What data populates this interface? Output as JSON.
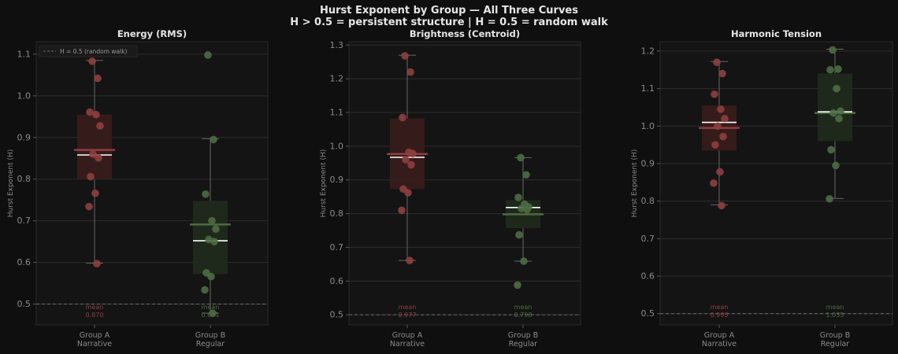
{
  "figure": {
    "title_line1": "Hurst Exponent by Group — All Three Curves",
    "title_line2": "H > 0.5 = persistent structure  |  H = 0.5 = random walk"
  },
  "colors": {
    "background": "#0f0f0f",
    "axes_bg": "#141414",
    "groupA": "#8f3e3e",
    "groupB": "#4d6b42",
    "median": "#ffffff",
    "grid": "#2c2c2c",
    "tick_text": "#8a8a8a",
    "reference_line": "#6a6a6a"
  },
  "chart_data": [
    {
      "type": "box",
      "title": "Energy (RMS)",
      "xlabel": "",
      "ylabel": "Hurst Exponent (H)",
      "ylim": [
        0.45,
        1.13
      ],
      "yticks": [
        "0.5",
        "0.6",
        "0.7",
        "0.8",
        "0.9",
        "1.0",
        "1.1"
      ],
      "reference_line": {
        "y": 0.5,
        "label": "H = 0.5 (random walk)"
      },
      "legend": "top-left",
      "categories": [
        "Group A\nNarrative",
        "Group B\nRegular"
      ],
      "groups": [
        {
          "q1": 0.8,
          "q3": 0.955,
          "median": 0.858,
          "mean": 0.87,
          "whisker_low": 0.598,
          "whisker_high": 1.085,
          "mean_label": "mean",
          "mean_value_label": "0.870",
          "points": [
            1.083,
            1.042,
            0.961,
            0.955,
            0.928,
            0.86,
            0.851,
            0.806,
            0.766,
            0.734,
            0.597
          ]
        },
        {
          "q1": 0.572,
          "q3": 0.748,
          "median": 0.652,
          "mean": 0.691,
          "whisker_low": 0.478,
          "whisker_high": 0.897,
          "mean_label": "mean",
          "mean_value_label": "0.691",
          "points": [
            1.098,
            0.895,
            0.764,
            0.7,
            0.68,
            0.655,
            0.65,
            0.575,
            0.566,
            0.534,
            0.478
          ]
        }
      ]
    },
    {
      "type": "box",
      "title": "Brightness (Centroid)",
      "xlabel": "",
      "ylabel": "Hurst Exponent (H)",
      "ylim": [
        0.47,
        1.31
      ],
      "yticks": [
        "0.5",
        "0.6",
        "0.7",
        "0.8",
        "0.9",
        "1.0",
        "1.1",
        "1.2",
        "1.3"
      ],
      "reference_line": {
        "y": 0.5,
        "label": ""
      },
      "categories": [
        "Group A\nNarrative",
        "Group B\nRegular"
      ],
      "groups": [
        {
          "q1": 0.873,
          "q3": 1.082,
          "median": 0.967,
          "mean": 0.977,
          "whisker_low": 0.661,
          "whisker_high": 1.27,
          "mean_label": "mean",
          "mean_value_label": "0.977",
          "points": [
            1.268,
            1.22,
            1.085,
            0.982,
            0.978,
            0.96,
            0.945,
            0.873,
            0.862,
            0.81,
            0.661
          ]
        },
        {
          "q1": 0.757,
          "q3": 0.84,
          "median": 0.818,
          "mean": 0.798,
          "whisker_low": 0.659,
          "whisker_high": 0.966,
          "mean_label": "mean",
          "mean_value_label": "0.798",
          "points": [
            0.966,
            0.915,
            0.848,
            0.828,
            0.82,
            0.815,
            0.812,
            0.737,
            0.659,
            0.588
          ]
        }
      ]
    },
    {
      "type": "box",
      "title": "Harmonic Tension",
      "xlabel": "",
      "ylabel": "Hurst Exponent (H)",
      "ylim": [
        0.47,
        1.225
      ],
      "yticks": [
        "0.5",
        "0.6",
        "0.7",
        "0.8",
        "0.9",
        "1.0",
        "1.1",
        "1.2"
      ],
      "reference_line": {
        "y": 0.5,
        "label": ""
      },
      "categories": [
        "Group A\nNarrative",
        "Group B\nRegular"
      ],
      "groups": [
        {
          "q1": 0.935,
          "q3": 1.055,
          "median": 1.01,
          "mean": 0.995,
          "whisker_low": 0.79,
          "whisker_high": 1.172,
          "mean_label": "mean",
          "mean_value_label": "0.995",
          "points": [
            1.17,
            1.14,
            1.085,
            1.045,
            1.02,
            1.0,
            0.972,
            0.95,
            0.878,
            0.848,
            0.788
          ]
        },
        {
          "q1": 0.96,
          "q3": 1.14,
          "median": 1.038,
          "mean": 1.035,
          "whisker_low": 0.807,
          "whisker_high": 1.205,
          "mean_label": "mean",
          "mean_value_label": "1.035",
          "points": [
            1.203,
            1.152,
            1.15,
            1.1,
            1.04,
            1.035,
            1.02,
            0.937,
            0.895,
            0.806
          ]
        }
      ]
    }
  ]
}
